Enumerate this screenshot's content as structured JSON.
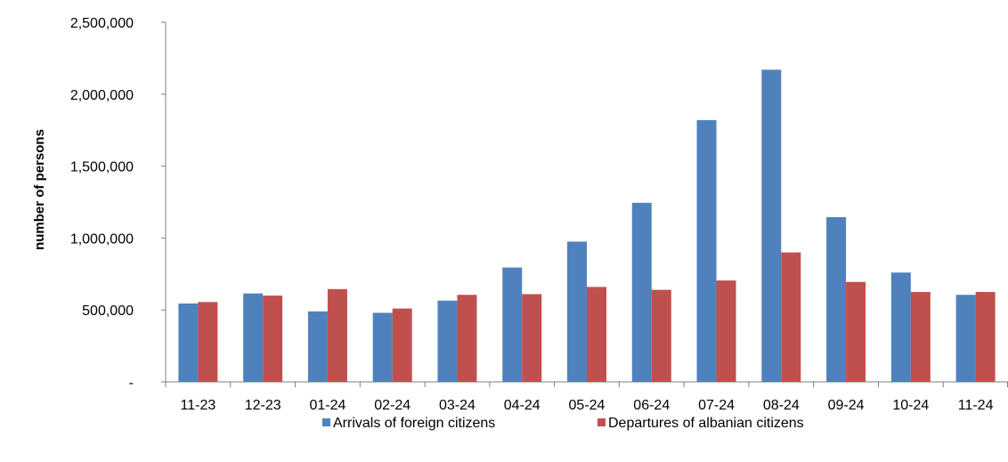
{
  "chart_data": {
    "type": "bar",
    "title": "",
    "xlabel": "",
    "ylabel": "number of persons",
    "ylim": [
      0,
      2500000
    ],
    "yticks": [
      0,
      500000,
      1000000,
      1500000,
      2000000,
      2500000
    ],
    "ytick_labels": [
      "-",
      "500,000",
      "1,000,000",
      "1,500,000",
      "2,000,000",
      "2,500,000"
    ],
    "categories": [
      "11-23",
      "12-23",
      "01-24",
      "02-24",
      "03-24",
      "04-24",
      "05-24",
      "06-24",
      "07-24",
      "08-24",
      "09-24",
      "10-24",
      "11-24"
    ],
    "series": [
      {
        "name": "Arrivals of foreign citizens",
        "color": "#4f81bd",
        "values": [
          545000,
          615000,
          490000,
          480000,
          565000,
          795000,
          975000,
          1245000,
          1820000,
          2170000,
          1145000,
          760000,
          605000
        ]
      },
      {
        "name": "Departures of albanian citizens",
        "color": "#c0504d",
        "values": [
          555000,
          600000,
          645000,
          510000,
          605000,
          610000,
          660000,
          640000,
          705000,
          900000,
          695000,
          625000,
          625000
        ]
      }
    ],
    "grid": false,
    "legend": "bottom"
  }
}
